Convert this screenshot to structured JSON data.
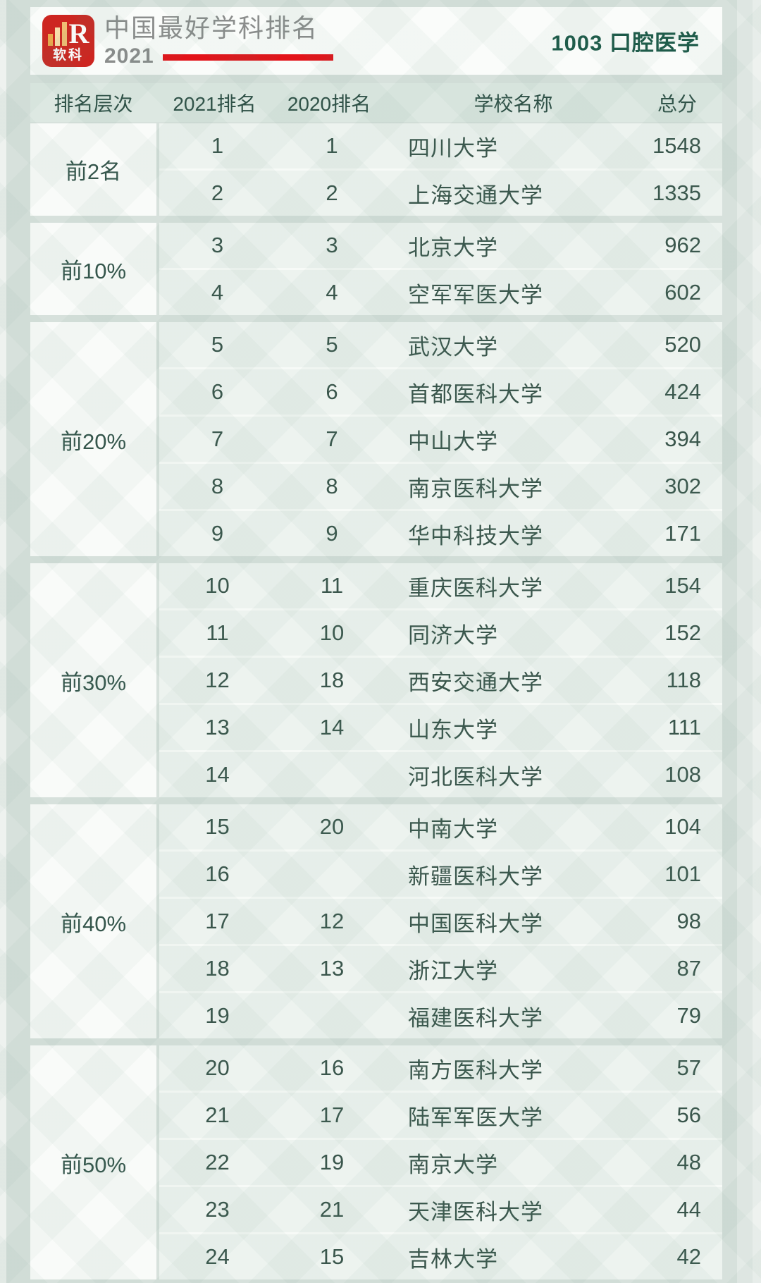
{
  "colors": {
    "page_bg": "#d7e1dc",
    "card_bg": "#fafcfa",
    "table_header_bg": "#dde8e2",
    "tier_cell_bg": "#f9fbf9",
    "row_bg": "#edf3ef",
    "text_green_dark": "#3a564c",
    "subject_green": "#1d5a49",
    "brand_gray": "#8b8d8c",
    "logo_red": "#cd2621",
    "accent_red_line": "#e31319"
  },
  "header": {
    "logo_brand": "软科",
    "logo_letter": "R",
    "title": "中国最好学科排名",
    "year": "2021",
    "subject": "1003 口腔医学"
  },
  "table": {
    "columns": {
      "tier": "排名层次",
      "rank_2021": "2021排名",
      "rank_2020": "2020排名",
      "school": "学校名称",
      "score": "总分"
    },
    "groups": [
      {
        "tier": "前2名",
        "rows": [
          {
            "rank_2021": "1",
            "rank_2020": "1",
            "school": "四川大学",
            "score": "1548"
          },
          {
            "rank_2021": "2",
            "rank_2020": "2",
            "school": "上海交通大学",
            "score": "1335"
          }
        ]
      },
      {
        "tier": "前10%",
        "rows": [
          {
            "rank_2021": "3",
            "rank_2020": "3",
            "school": "北京大学",
            "score": "962"
          },
          {
            "rank_2021": "4",
            "rank_2020": "4",
            "school": "空军军医大学",
            "score": "602"
          }
        ]
      },
      {
        "tier": "前20%",
        "rows": [
          {
            "rank_2021": "5",
            "rank_2020": "5",
            "school": "武汉大学",
            "score": "520"
          },
          {
            "rank_2021": "6",
            "rank_2020": "6",
            "school": "首都医科大学",
            "score": "424"
          },
          {
            "rank_2021": "7",
            "rank_2020": "7",
            "school": "中山大学",
            "score": "394"
          },
          {
            "rank_2021": "8",
            "rank_2020": "8",
            "school": "南京医科大学",
            "score": "302"
          },
          {
            "rank_2021": "9",
            "rank_2020": "9",
            "school": "华中科技大学",
            "score": "171"
          }
        ]
      },
      {
        "tier": "前30%",
        "rows": [
          {
            "rank_2021": "10",
            "rank_2020": "11",
            "school": "重庆医科大学",
            "score": "154"
          },
          {
            "rank_2021": "11",
            "rank_2020": "10",
            "school": "同济大学",
            "score": "152"
          },
          {
            "rank_2021": "12",
            "rank_2020": "18",
            "school": "西安交通大学",
            "score": "118"
          },
          {
            "rank_2021": "13",
            "rank_2020": "14",
            "school": "山东大学",
            "score": "111"
          },
          {
            "rank_2021": "14",
            "rank_2020": "",
            "school": "河北医科大学",
            "score": "108"
          }
        ]
      },
      {
        "tier": "前40%",
        "rows": [
          {
            "rank_2021": "15",
            "rank_2020": "20",
            "school": "中南大学",
            "score": "104"
          },
          {
            "rank_2021": "16",
            "rank_2020": "",
            "school": "新疆医科大学",
            "score": "101"
          },
          {
            "rank_2021": "17",
            "rank_2020": "12",
            "school": "中国医科大学",
            "score": "98"
          },
          {
            "rank_2021": "18",
            "rank_2020": "13",
            "school": "浙江大学",
            "score": "87"
          },
          {
            "rank_2021": "19",
            "rank_2020": "",
            "school": "福建医科大学",
            "score": "79"
          }
        ]
      },
      {
        "tier": "前50%",
        "rows": [
          {
            "rank_2021": "20",
            "rank_2020": "16",
            "school": "南方医科大学",
            "score": "57"
          },
          {
            "rank_2021": "21",
            "rank_2020": "17",
            "school": "陆军军医大学",
            "score": "56"
          },
          {
            "rank_2021": "22",
            "rank_2020": "19",
            "school": "南京大学",
            "score": "48"
          },
          {
            "rank_2021": "23",
            "rank_2020": "21",
            "school": "天津医科大学",
            "score": "44"
          },
          {
            "rank_2021": "24",
            "rank_2020": "15",
            "school": "吉林大学",
            "score": "42"
          }
        ]
      }
    ]
  }
}
